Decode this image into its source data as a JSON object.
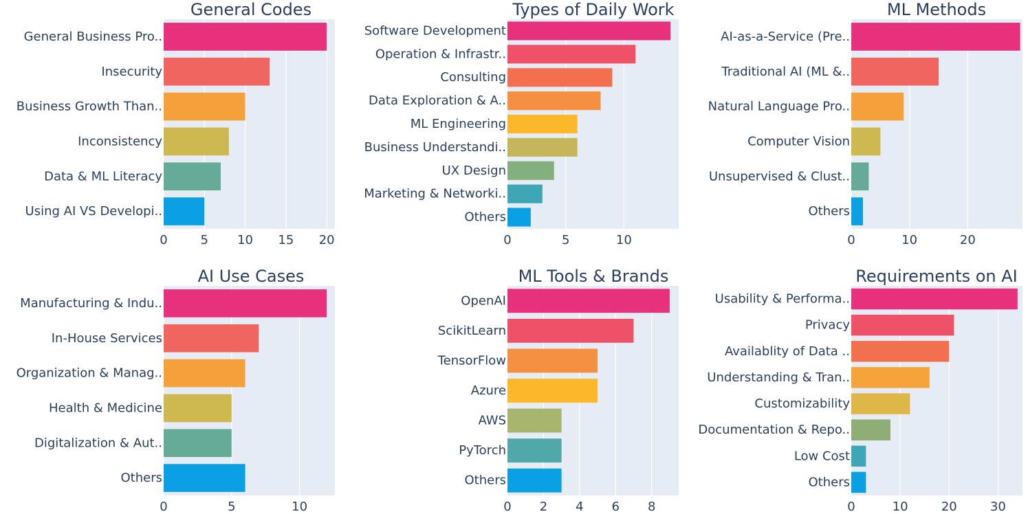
{
  "chart_data": [
    {
      "type": "bar",
      "orientation": "horizontal",
      "title": "General Codes",
      "categories": [
        "General Business Pro..",
        "Insecurity",
        "Business Growth Than..",
        "Inconsistency",
        "Data & ML Literacy",
        "Using AI VS Developi.."
      ],
      "values": [
        20,
        13,
        10,
        8,
        7,
        5
      ],
      "colors": [
        "#e8317d",
        "#f06560",
        "#f6a03c",
        "#cdb94f",
        "#66ab98",
        "#0aa0e3"
      ],
      "xlim": [
        0,
        21
      ],
      "xticks": [
        0,
        5,
        10,
        15,
        20
      ],
      "xticklabels": [
        "0",
        "5",
        "10",
        "15",
        "20"
      ],
      "xlabel": "",
      "ylabel": ""
    },
    {
      "type": "bar",
      "orientation": "horizontal",
      "title": "Types of Daily Work",
      "categories": [
        "Software Development",
        "Operation & Infrastr..",
        "Consulting",
        "Data Exploration & A..",
        "ML Engineering",
        "Business Understandi..",
        "UX Design",
        "Marketing & Networki..",
        "Others"
      ],
      "values": [
        14,
        11,
        9,
        8,
        6,
        6,
        4,
        3,
        2
      ],
      "colors": [
        "#e8317d",
        "#ef5168",
        "#f3704f",
        "#f58f41",
        "#fcb82a",
        "#c5b55b",
        "#84b080",
        "#3ea6b4",
        "#0aa0e3"
      ],
      "xlim": [
        0,
        14.7
      ],
      "xticks": [
        0,
        5,
        10
      ],
      "xticklabels": [
        "0",
        "5",
        "10"
      ],
      "xlabel": "",
      "ylabel": ""
    },
    {
      "type": "bar",
      "orientation": "horizontal",
      "title": "ML Methods",
      "categories": [
        "AI-as-a-Service (Pre..",
        "Traditional AI (ML &..",
        "Natural Language Pro..",
        "Computer Vision",
        "Unsupervised & Clust..",
        "Others"
      ],
      "values": [
        29,
        15,
        9,
        5,
        3,
        2
      ],
      "colors": [
        "#e8317d",
        "#f06560",
        "#f6a03c",
        "#cdb94f",
        "#66ab98",
        "#0aa0e3"
      ],
      "xlim": [
        0,
        29.4
      ],
      "xticks": [
        0,
        10,
        20
      ],
      "xticklabels": [
        "0",
        "10",
        "20"
      ],
      "xlabel": "",
      "ylabel": ""
    },
    {
      "type": "bar",
      "orientation": "horizontal",
      "title": "AI Use Cases",
      "categories": [
        "Manufacturing & Indu..",
        "In-House Services",
        "Organization & Manag..",
        "Health & Medicine",
        "Digitalization & Aut..",
        "Others"
      ],
      "values": [
        12,
        7,
        6,
        5,
        5,
        6
      ],
      "colors": [
        "#e8317d",
        "#f06560",
        "#f6a03c",
        "#cdb94f",
        "#66ab98",
        "#0aa0e3"
      ],
      "xlim": [
        0,
        12.6
      ],
      "xticks": [
        0,
        5,
        10
      ],
      "xticklabels": [
        "0",
        "5",
        "10"
      ],
      "xlabel": "",
      "ylabel": ""
    },
    {
      "type": "bar",
      "orientation": "horizontal",
      "title": "ML Tools & Brands",
      "categories": [
        "OpenAI",
        "ScikitLearn",
        "TensorFlow",
        "Azure",
        "AWS",
        "PyTorch",
        "Others"
      ],
      "values": [
        9,
        7,
        5,
        5,
        3,
        3,
        3
      ],
      "colors": [
        "#e8317d",
        "#ef5168",
        "#f58f41",
        "#fcb82a",
        "#a8b56c",
        "#50a9a8",
        "#0aa0e3"
      ],
      "xlim": [
        0,
        9.5
      ],
      "xticks": [
        0,
        2,
        4,
        6,
        8
      ],
      "xticklabels": [
        "0",
        "2",
        "4",
        "6",
        "8"
      ],
      "xlabel": "",
      "ylabel": ""
    },
    {
      "type": "bar",
      "orientation": "horizontal",
      "title": "Requirements on AI",
      "categories": [
        "Usability & Performa..",
        "Privacy",
        "Availablity of Data ..",
        "Understanding & Tran..",
        "Customizability",
        "Documentation & Repo..",
        "Low Cost",
        "Others"
      ],
      "values": [
        34,
        21,
        20,
        16,
        12,
        8,
        3,
        3
      ],
      "colors": [
        "#e8317d",
        "#ef5168",
        "#f3704f",
        "#f7a33b",
        "#dfb748",
        "#8fae75",
        "#3ea6b4",
        "#0aa0e3"
      ],
      "xlim": [
        0,
        35
      ],
      "xticks": [
        0,
        10,
        20,
        30
      ],
      "xticklabels": [
        "0",
        "10",
        "20",
        "30"
      ],
      "xlabel": "",
      "ylabel": ""
    }
  ]
}
